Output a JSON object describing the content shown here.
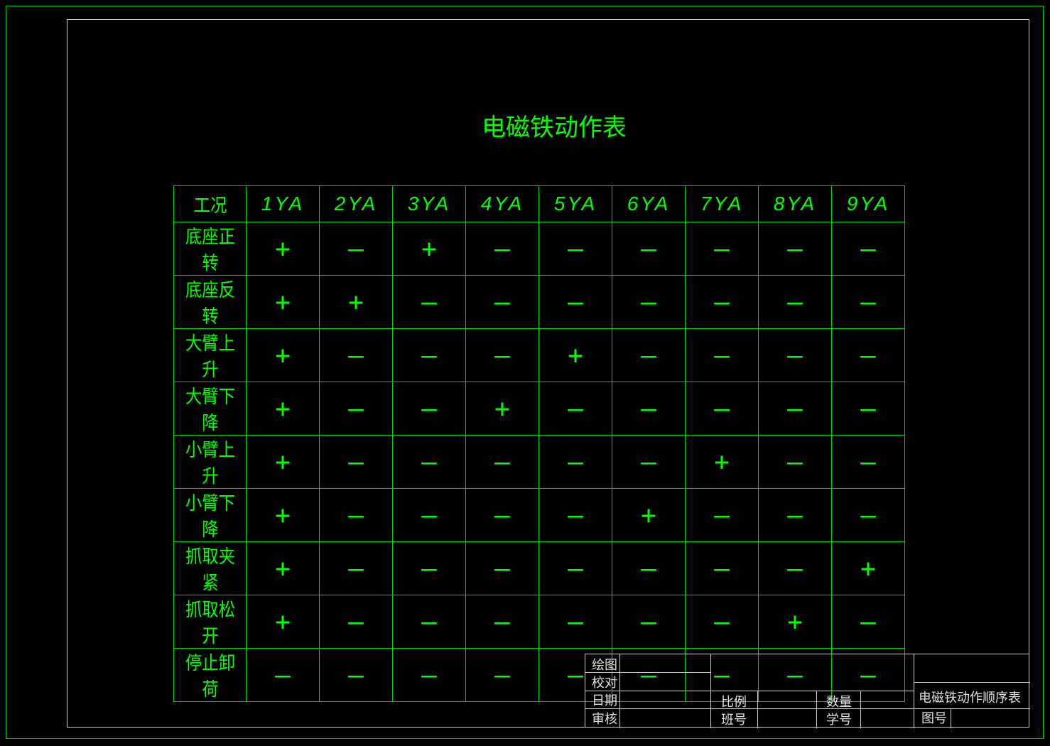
{
  "title": "电磁铁动作表",
  "table": {
    "header": [
      "工况",
      "1YA",
      "2YA",
      "3YA",
      "4YA",
      "5YA",
      "6YA",
      "7YA",
      "8YA",
      "9YA"
    ],
    "rows": [
      {
        "label": "底座正转",
        "values": [
          "+",
          "—",
          "+",
          "—",
          "—",
          "—",
          "—",
          "—",
          "—"
        ]
      },
      {
        "label": "底座反转",
        "values": [
          "+",
          "+",
          "—",
          "—",
          "—",
          "—",
          "—",
          "—",
          "—"
        ]
      },
      {
        "label": "大臂上升",
        "values": [
          "+",
          "—",
          "—",
          "—",
          "+",
          "—",
          "—",
          "—",
          "—"
        ]
      },
      {
        "label": "大臂下降",
        "values": [
          "+",
          "—",
          "—",
          "+",
          "—",
          "—",
          "—",
          "—",
          "—"
        ]
      },
      {
        "label": "小臂上升",
        "values": [
          "+",
          "—",
          "—",
          "—",
          "—",
          "—",
          "+",
          "—",
          "—"
        ]
      },
      {
        "label": "小臂下降",
        "values": [
          "+",
          "—",
          "—",
          "—",
          "—",
          "+",
          "—",
          "—",
          "—"
        ]
      },
      {
        "label": "抓取夹紧",
        "values": [
          "+",
          "—",
          "—",
          "—",
          "—",
          "—",
          "—",
          "—",
          "+"
        ]
      },
      {
        "label": "抓取松开",
        "values": [
          "+",
          "—",
          "—",
          "—",
          "—",
          "—",
          "—",
          "+",
          "—"
        ]
      },
      {
        "label": "停止卸荷",
        "values": [
          "—",
          "—",
          "—",
          "—",
          "—",
          "—",
          "—",
          "—",
          "—"
        ]
      }
    ]
  },
  "title_block": {
    "drawn": "绘图",
    "checked": "校对",
    "date": "日期",
    "reviewed": "审核",
    "scale": "比例",
    "class_no": "班号",
    "quantity": "数量",
    "student_no": "学号",
    "drawing_name": "电磁铁动作顺序表",
    "drawing_no": "图号"
  },
  "colors": {
    "lines": "#00ff00",
    "frame": "#d0d0d0",
    "background": "#000000"
  }
}
